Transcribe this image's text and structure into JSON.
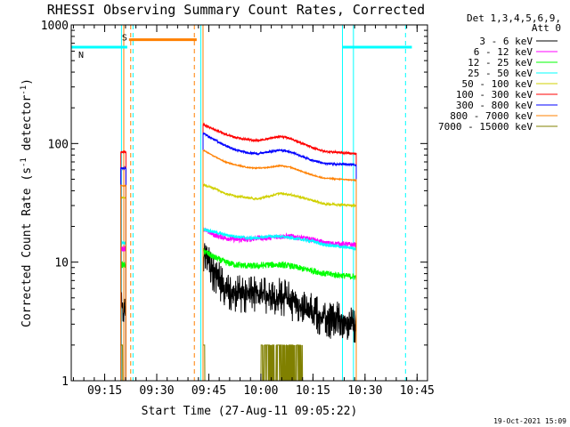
{
  "chart_data": {
    "type": "line",
    "title": "RHESSI Observing Summary Count Rates, Corrected",
    "xlabel": "Start Time (27-Aug-11 09:05:22)",
    "ylabel_main": "Corrected Count Rate (s",
    "ylabel_sup1": "-1",
    "ylabel_mid": " detector",
    "ylabel_sup2": "-1",
    "ylabel_end": ")",
    "yscale": "log",
    "ylim": [
      1,
      1000
    ],
    "xlim": [
      "09:05:22",
      "10:48:00"
    ],
    "grid": false,
    "legend_position": "right",
    "x_ticks": [
      "09:15",
      "09:30",
      "09:45",
      "10:00",
      "10:15",
      "10:30",
      "10:45"
    ],
    "y_ticks": [
      "1",
      "10",
      "100",
      "1000"
    ],
    "legend_header": [
      "Det 1,3,4,5,6,9,",
      "Att 0"
    ],
    "timestamp": "19-Oct-2021 15:09",
    "flag_markers": [
      {
        "label": "S",
        "color": "#ff8000",
        "start": "09:22:00",
        "end": "09:41:30",
        "level": 750
      },
      {
        "label": "N",
        "color": "#00ffff",
        "start": "09:05:22",
        "end": "09:21:30",
        "level": 650
      },
      {
        "label": "",
        "color": "#00ffff",
        "start": "10:23:30",
        "end": "10:43:30",
        "level": 650
      }
    ],
    "vertical_lines": [
      {
        "time": "09:19:50",
        "color": "#00ffff",
        "style": "solid"
      },
      {
        "time": "09:20:30",
        "color": "#ff8000",
        "style": "solid"
      },
      {
        "time": "09:22:30",
        "color": "#ff8000",
        "style": "dashed"
      },
      {
        "time": "09:23:10",
        "color": "#00ffff",
        "style": "dashed"
      },
      {
        "time": "09:40:50",
        "color": "#ff8000",
        "style": "dashed"
      },
      {
        "time": "09:42:40",
        "color": "#00ffff",
        "style": "solid"
      },
      {
        "time": "09:43:20",
        "color": "#ff8000",
        "style": "solid"
      },
      {
        "time": "10:23:30",
        "color": "#00ffff",
        "style": "solid"
      },
      {
        "time": "10:26:40",
        "color": "#00ffff",
        "style": "solid"
      },
      {
        "time": "10:41:40",
        "color": "#00ffff",
        "style": "dashed"
      }
    ],
    "orbit_segments": [
      {
        "start": "09:19:40",
        "end": "09:21:10"
      },
      {
        "start": "09:43:20",
        "end": "10:27:30"
      }
    ],
    "series": [
      {
        "name": "3 - 6 keV",
        "color": "#000000",
        "values": [
          4,
          4,
          12,
          8,
          6,
          5.5,
          5.5,
          5.2,
          5.2,
          5.2,
          4.7,
          4.2,
          3.8,
          3.4,
          3
        ],
        "noise": 0.15
      },
      {
        "name": "6 - 12 keV",
        "color": "#ff00ff",
        "values": [
          13,
          13,
          19,
          17,
          16,
          15.5,
          15.5,
          16,
          16,
          16.5,
          16.5,
          16,
          15.5,
          14.5,
          14
        ],
        "noise": 0.05
      },
      {
        "name": "12 - 25 keV",
        "color": "#00ff00",
        "values": [
          9.5,
          9.5,
          12.5,
          11,
          10,
          9.5,
          9.3,
          9.3,
          9.5,
          9.5,
          9.3,
          8.8,
          8.5,
          8,
          7.5
        ],
        "noise": 0.06
      },
      {
        "name": "25 - 50 keV",
        "color": "#00ffff",
        "values": [
          14.5,
          14.5,
          19,
          18,
          17,
          16.5,
          16,
          16,
          16.5,
          16.5,
          16,
          15.5,
          15,
          14,
          13
        ],
        "noise": 0.03
      },
      {
        "name": "50 - 100 keV",
        "color": "#d0d000",
        "values": [
          35,
          35,
          45,
          42,
          38,
          36,
          35,
          34,
          36,
          38,
          37,
          35,
          33,
          31,
          30
        ],
        "noise": 0.02
      },
      {
        "name": "100 - 300 keV",
        "color": "#ff0000",
        "values": [
          85,
          85,
          145,
          132,
          120,
          112,
          108,
          106,
          110,
          115,
          110,
          100,
          92,
          86,
          82
        ],
        "noise": 0.02
      },
      {
        "name": "300 - 800 keV",
        "color": "#0000ff",
        "values": [
          62,
          62,
          122,
          108,
          96,
          88,
          84,
          82,
          85,
          88,
          85,
          78,
          72,
          68,
          66
        ],
        "noise": 0.02
      },
      {
        "name": "800 - 7000 keV",
        "color": "#ff8000",
        "values": [
          44,
          44,
          88,
          78,
          70,
          66,
          63,
          62,
          63,
          65,
          63,
          58,
          54,
          51,
          49
        ],
        "noise": 0.01
      },
      {
        "name": "7000 - 15000 keV",
        "color": "#808000",
        "values": [
          2,
          2,
          1,
          1,
          1,
          1,
          1,
          1,
          2,
          2,
          1,
          1,
          1,
          1,
          1
        ],
        "noise": 0
      }
    ],
    "series_times": [
      "09:19:40",
      "09:21:10",
      "09:43:20",
      "09:46:30",
      "09:49:40",
      "09:52:50",
      "09:56:00",
      "09:59:10",
      "10:02:20",
      "10:05:30",
      "10:08:40",
      "10:11:50",
      "10:15:00",
      "10:18:10",
      "10:27:30"
    ]
  }
}
